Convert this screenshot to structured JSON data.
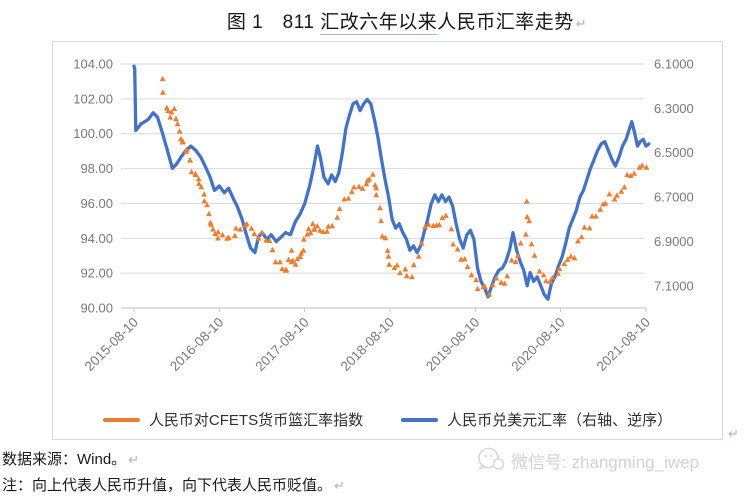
{
  "title": {
    "prefix": "图 1　811 ",
    "underlined": "汇改六年以来",
    "suffix": "人民币汇率走势",
    "return_mark": "↵"
  },
  "marks": {
    "return": "↵"
  },
  "source_line": "数据来源：Wind。",
  "note_line": "注：向上代表人民币升值，向下代表人民币贬值。",
  "watermark": {
    "icon": "wechat-icon",
    "text": "微信号: zhangming_iwep"
  },
  "colors": {
    "cfets_orange": "#ED7D31",
    "usdcny_blue": "#4472C4",
    "gridline": "#d9d9d9",
    "axis_line": "#bfbfbf",
    "axis_label": "#7a7a7a",
    "watermark_gray": "#d2d2d2"
  },
  "chart_data": {
    "type": "line+scatter",
    "grid": "horizontal",
    "legend_position": "bottom-inside",
    "x_axis": {
      "unit": "months since 2015-08-10",
      "range_months": [
        0,
        72
      ],
      "ticks": [
        "2015-08-10",
        "2016-08-10",
        "2017-08-10",
        "2018-08-10",
        "2019-08-10",
        "2020-08-10",
        "2021-08-10"
      ],
      "tick_interval_months": 12
    },
    "left_axis": {
      "title": "CFETS index scale",
      "min": 90,
      "max": 104,
      "ticks": [
        "104.00",
        "102.00",
        "100.00",
        "98.00",
        "96.00",
        "94.00",
        "92.00",
        "90.00"
      ]
    },
    "right_axis": {
      "title": "USD/CNY scale (reversed)",
      "min": 6.1,
      "max": 7.2,
      "reversed": true,
      "ticks": [
        "6.1000",
        "6.3000",
        "6.5000",
        "6.7000",
        "6.9000",
        "7.1000"
      ]
    },
    "series": [
      {
        "name": "人民币对CFETS货币篮汇率指数",
        "type": "scatter-triangle",
        "axis": "left",
        "color": "#ED7D31",
        "x": [
          3.9,
          4.5,
          5,
          5.5,
          6,
          6.5,
          7,
          7.5,
          8,
          8.5,
          9,
          9.5,
          10,
          10.5,
          11,
          11.5,
          12,
          13,
          14,
          15,
          16,
          17,
          18,
          19,
          20,
          21,
          21.6,
          22,
          22.5,
          23,
          23.5,
          24,
          24.5,
          25,
          25.5,
          26,
          27,
          28,
          29,
          30,
          31,
          32,
          33,
          33.5,
          34,
          34.5,
          35,
          35.5,
          36,
          37,
          38,
          39,
          40,
          41,
          42,
          43,
          44,
          45,
          46,
          47,
          48,
          49,
          50,
          51,
          52,
          53,
          54,
          55,
          55.3,
          56,
          57,
          58,
          59,
          60,
          61,
          62,
          63,
          64,
          65,
          66,
          67,
          68,
          69,
          70,
          71,
          72
        ],
        "values": [
          103.2,
          101.6,
          100.9,
          101.3,
          100.5,
          99.9,
          99.5,
          98.9,
          98.3,
          97.8,
          97.4,
          97.1,
          96.1,
          95.4,
          94.6,
          94.2,
          94.3,
          94.1,
          94.2,
          94.7,
          94.8,
          94.2,
          94.1,
          93.8,
          92.9,
          92.4,
          92.2,
          93.1,
          92.7,
          92.8,
          93.3,
          93.8,
          94.3,
          94.8,
          94.5,
          94.4,
          94.4,
          94.8,
          95.8,
          96.4,
          96.7,
          97.0,
          97.4,
          97.6,
          97.0,
          95.8,
          94.3,
          93.3,
          92.6,
          92.3,
          92.1,
          91.9,
          93.0,
          94.6,
          94.9,
          95.0,
          95.1,
          93.6,
          92.8,
          92.5,
          91.6,
          91.1,
          91.0,
          91.5,
          91.4,
          92.6,
          92.9,
          94.3,
          95.9,
          93.8,
          92.1,
          91.3,
          91.6,
          92.0,
          92.6,
          93.1,
          94.2,
          94.8,
          95.3,
          96.0,
          96.4,
          96.6,
          97.0,
          97.8,
          98.0,
          98.3
        ]
      },
      {
        "name": "人民币兑美元汇率（右轴、逆序）",
        "type": "line",
        "axis": "right",
        "color": "#4472C4",
        "x": [
          0,
          0.1,
          0.25,
          1,
          2,
          2.7,
          3.3,
          4,
          4.7,
          5.4,
          6,
          6.6,
          7.3,
          8,
          8.7,
          9.4,
          10,
          10.7,
          11.3,
          12,
          12.7,
          13.3,
          14,
          14.5,
          15.2,
          15.8,
          16.4,
          17,
          17.5,
          18,
          18.7,
          19.3,
          20,
          20.7,
          21.3,
          22,
          22.7,
          23.3,
          24,
          24.7,
          25.3,
          25.8,
          26.2,
          26.7,
          27.3,
          27.8,
          28.3,
          28.8,
          29.3,
          29.8,
          30.3,
          30.8,
          31.3,
          31.8,
          32.3,
          32.8,
          33.3,
          33.8,
          34.3,
          34.8,
          35.3,
          35.8,
          36.3,
          36.8,
          37.3,
          37.8,
          38.3,
          38.8,
          39.3,
          39.8,
          40.3,
          40.8,
          41.3,
          41.8,
          42.3,
          42.8,
          43.3,
          43.8,
          44.3,
          44.8,
          45.3,
          45.8,
          46.3,
          46.8,
          47.3,
          47.8,
          48.3,
          48.8,
          49.3,
          49.8,
          50.3,
          50.8,
          51.3,
          51.8,
          52.3,
          52.8,
          53.3,
          53.8,
          54.3,
          54.8,
          55.3,
          55.7,
          56.2,
          56.7,
          57.2,
          57.7,
          58.2,
          58.7,
          59.2,
          59.7,
          60.2,
          60.7,
          61.2,
          61.7,
          62.2,
          62.7,
          63.2,
          63.7,
          64.2,
          64.7,
          65.2,
          65.7,
          66.2,
          66.7,
          67.2,
          67.7,
          68.2,
          68.7,
          69.2,
          69.7,
          70,
          70.4,
          70.8,
          71.2,
          71.6,
          72,
          72.4
        ],
        "values": [
          6.11,
          6.12,
          6.4,
          6.37,
          6.35,
          6.32,
          6.34,
          6.41,
          6.49,
          6.57,
          6.55,
          6.52,
          6.49,
          6.47,
          6.49,
          6.52,
          6.56,
          6.61,
          6.67,
          6.65,
          6.68,
          6.66,
          6.71,
          6.74,
          6.8,
          6.87,
          6.93,
          6.95,
          6.88,
          6.86,
          6.89,
          6.87,
          6.9,
          6.88,
          6.86,
          6.87,
          6.81,
          6.78,
          6.73,
          6.65,
          6.56,
          6.47,
          6.52,
          6.61,
          6.64,
          6.6,
          6.63,
          6.59,
          6.5,
          6.39,
          6.33,
          6.28,
          6.27,
          6.31,
          6.28,
          6.26,
          6.28,
          6.35,
          6.43,
          6.53,
          6.62,
          6.7,
          6.8,
          6.84,
          6.82,
          6.86,
          6.89,
          6.94,
          6.92,
          6.95,
          6.92,
          6.86,
          6.8,
          6.73,
          6.69,
          6.72,
          6.69,
          6.72,
          6.7,
          6.74,
          6.82,
          6.89,
          6.93,
          6.87,
          6.85,
          6.89,
          7.02,
          7.08,
          7.11,
          7.15,
          7.1,
          7.06,
          7.03,
          7.02,
          6.99,
          6.94,
          6.86,
          6.94,
          6.99,
          7.03,
          7.1,
          7.04,
          7.08,
          7.06,
          7.1,
          7.14,
          7.16,
          7.09,
          7.06,
          7.01,
          6.97,
          6.91,
          6.84,
          6.8,
          6.76,
          6.7,
          6.67,
          6.62,
          6.57,
          6.53,
          6.49,
          6.46,
          6.45,
          6.49,
          6.53,
          6.56,
          6.52,
          6.47,
          6.44,
          6.39,
          6.36,
          6.41,
          6.47,
          6.45,
          6.44,
          6.47,
          6.46
        ]
      }
    ]
  }
}
